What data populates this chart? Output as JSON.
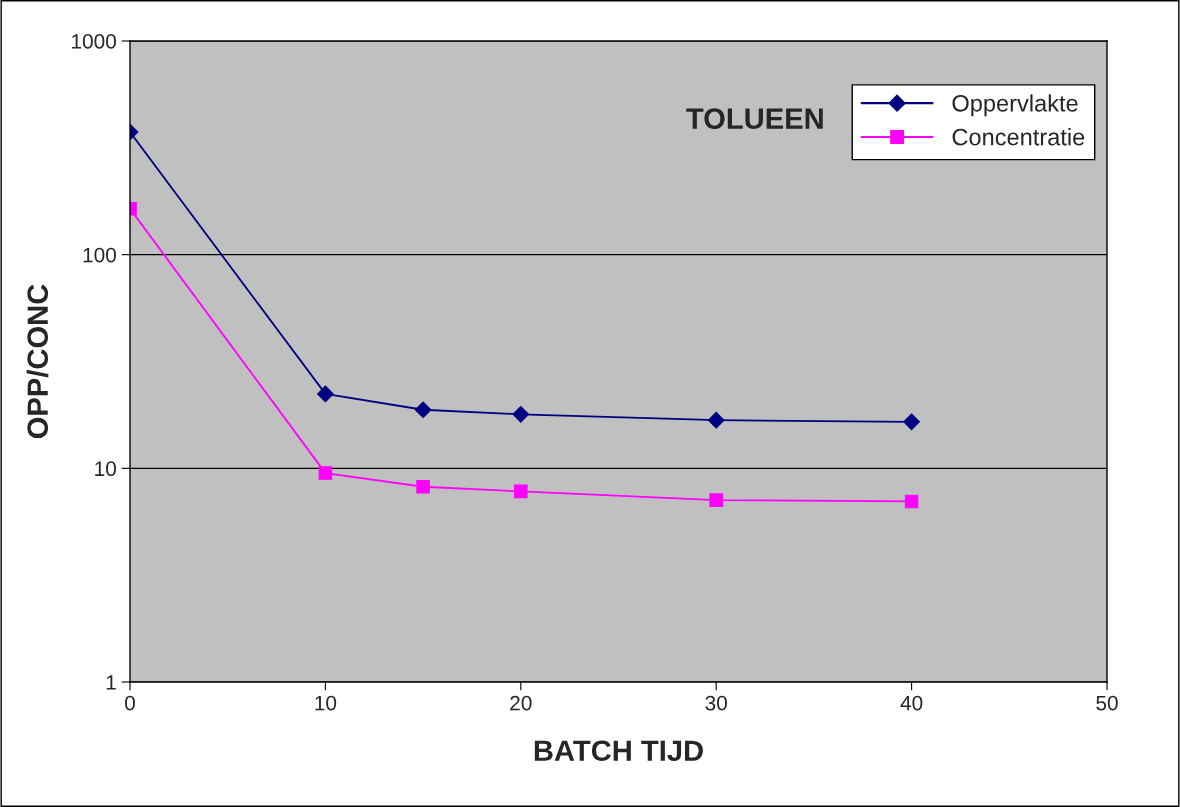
{
  "chart_data": {
    "type": "line",
    "title": "TOLUEEN",
    "xlabel": "BATCH TIJD",
    "ylabel": "OPP/CONC",
    "x": [
      0,
      10,
      15,
      20,
      30,
      40
    ],
    "series": [
      {
        "name": "Oppervlakte",
        "color": "#000080",
        "values": [
          375,
          22.3,
          18.8,
          17.9,
          16.8,
          16.5
        ],
        "marker": "diamond"
      },
      {
        "name": "Concentratie",
        "color": "#ff00ff",
        "values": [
          164,
          9.5,
          8.2,
          7.8,
          7.1,
          7.0
        ],
        "marker": "square"
      }
    ],
    "log": "y",
    "xlim": [
      0,
      50
    ],
    "xticks": [
      0,
      10,
      20,
      30,
      40,
      50
    ],
    "ylim": [
      1,
      1000
    ],
    "yticks": [
      1,
      10,
      100,
      1000
    ],
    "grid": "y",
    "legend": "top right",
    "line_style": "solid"
  }
}
